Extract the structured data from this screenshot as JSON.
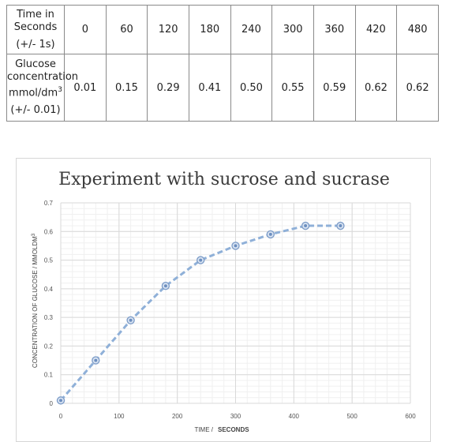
{
  "table": {
    "time_header": "Time in Seconds",
    "time_uncertainty": "(+/- 1s)",
    "time_values": [
      "0",
      "60",
      "120",
      "180",
      "240",
      "300",
      "360",
      "420",
      "480"
    ],
    "glucose_header_line1": "Glucose concentration",
    "glucose_header_unit": "mmol/dm",
    "glucose_header_sup": "3",
    "glucose_uncertainty": "(+/- 0.01)",
    "glucose_values": [
      "0.01",
      "0.15",
      "0.29",
      "0.41",
      "0.50",
      "0.55",
      "0.59",
      "0.62",
      "0.62"
    ]
  },
  "chart_data": {
    "type": "line",
    "title": "Experiment with sucrose and sucrase",
    "xlabel": "TIME /",
    "xlabel_bold": "SECONDS",
    "ylabel": "CONCENTRATION OF GLUCOSE / MMOLDM",
    "ylabel_sup": "3",
    "xlim": [
      0,
      600
    ],
    "ylim": [
      0,
      0.7
    ],
    "x_ticks": [
      0,
      100,
      200,
      300,
      400,
      500,
      600
    ],
    "y_ticks": [
      "0",
      "0.1",
      "0.2",
      "0.3",
      "0.4",
      "0.5",
      "0.6",
      "0.7"
    ],
    "grid": true,
    "line_style": "dashed",
    "marker": "circle",
    "color": "#8fb0d8",
    "series": [
      {
        "x": [
          0,
          60,
          120,
          180,
          240,
          300,
          360,
          420,
          480
        ],
        "y": [
          0.01,
          0.15,
          0.29,
          0.41,
          0.5,
          0.55,
          0.59,
          0.62,
          0.62
        ]
      }
    ]
  }
}
